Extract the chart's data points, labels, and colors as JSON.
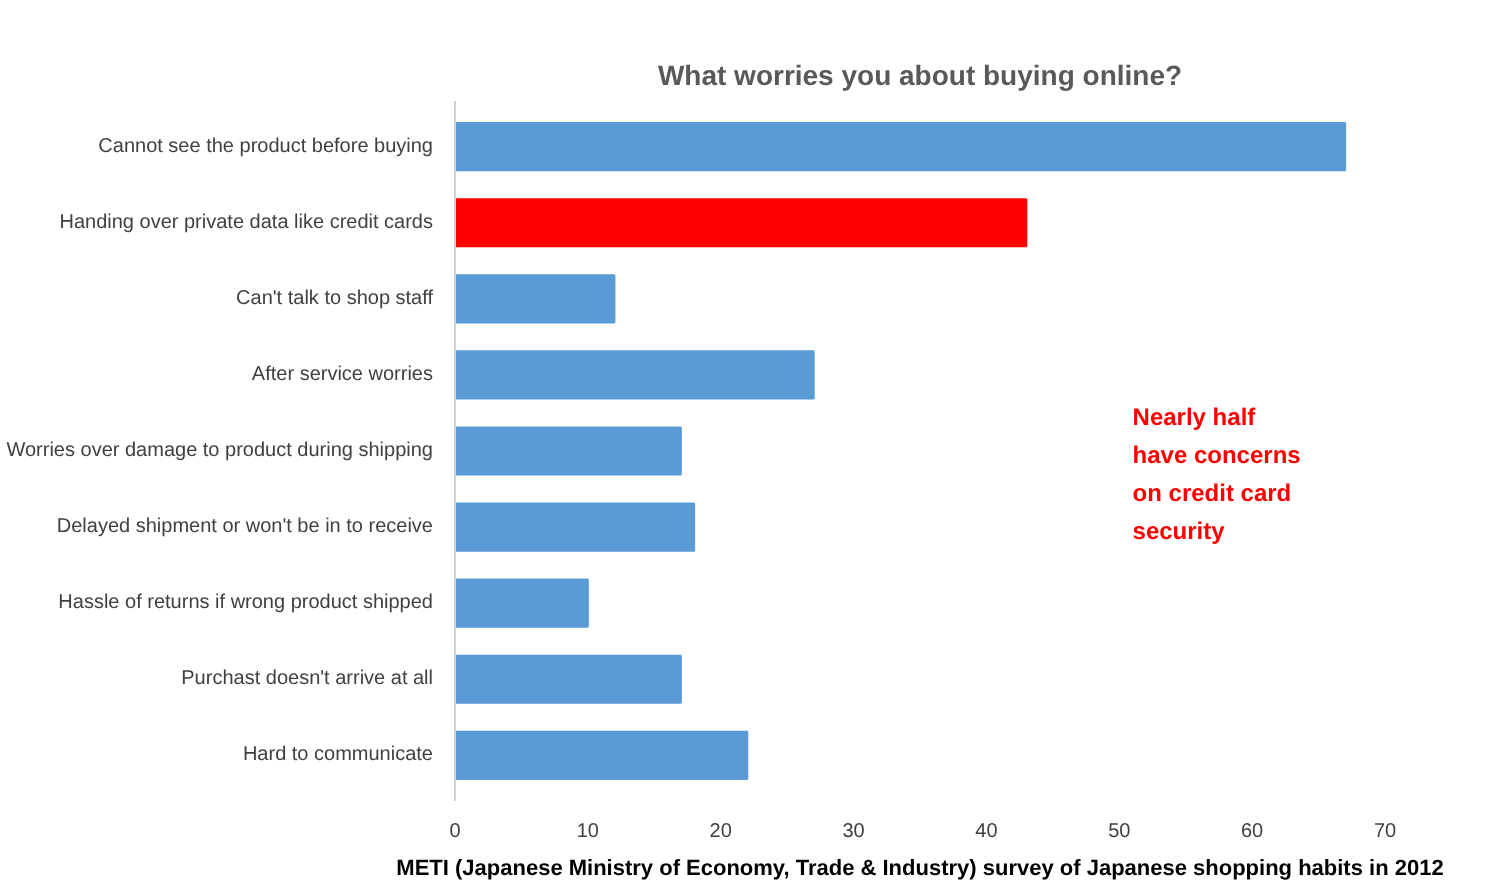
{
  "chart_data": {
    "type": "bar",
    "orientation": "horizontal",
    "title": "What worries you about buying online?",
    "categories": [
      "Cannot see the product before buying",
      "Handing over private data like credit cards",
      "Can't talk to shop staff",
      "After service worries",
      "Worries over damage to product during shipping",
      "Delayed shipment or won't be in to receive",
      "Hassle of returns if wrong product shipped",
      "Purchast doesn't arrive at all",
      "Hard to communicate"
    ],
    "values": [
      67,
      43,
      12,
      27,
      17,
      18,
      10,
      17,
      22
    ],
    "colors": [
      "#5b9bd5",
      "#ff0000",
      "#5b9bd5",
      "#5b9bd5",
      "#5b9bd5",
      "#5b9bd5",
      "#5b9bd5",
      "#5b9bd5",
      "#5b9bd5"
    ],
    "xlim": [
      0,
      70
    ],
    "xticks": [
      0,
      10,
      20,
      30,
      40,
      50,
      60,
      70
    ],
    "grid": false,
    "annotations": [
      "Nearly half\nhave concerns\non credit card\nsecurity",
      "METI (Japanese Ministry of Economy, Trade & Industry) survey of Japanese shopping habits in 2012"
    ]
  }
}
